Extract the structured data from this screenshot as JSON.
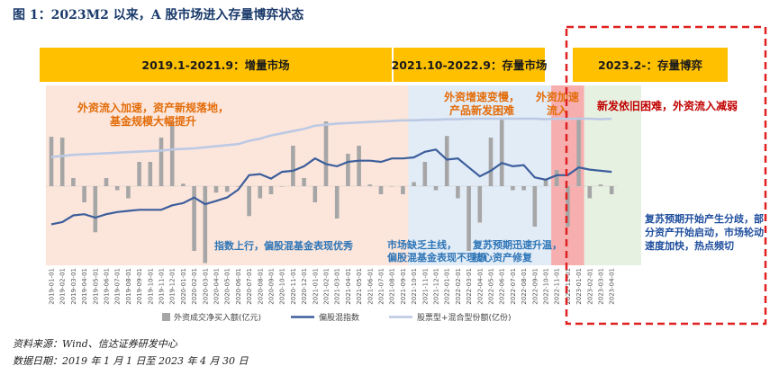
{
  "figure_title": "图 1：2023M2 以来，A 股市场进入存量博弈状态",
  "phases": [
    {
      "label": "2019.1-2021.9：增量市场"
    },
    {
      "label": "2021.10-2022.9：存量市场"
    },
    {
      "label": "2023.2-：存量博弈"
    }
  ],
  "annotations": [
    {
      "lines": [
        "外资流入加速，资产新规落地，",
        "基金规模大幅提升"
      ],
      "color": "#e36c09"
    },
    {
      "lines": [
        "外资增速变慢，",
        "产品新发困难"
      ],
      "color": "#e36c09"
    },
    {
      "lines": [
        "外资加速",
        "流入"
      ],
      "color": "#e36c09"
    },
    {
      "lines": [
        "新发依旧困难，外资流入减弱"
      ],
      "color": "#c00000"
    },
    {
      "lines": [
        "指数上行，偏股混基金表现优秀"
      ],
      "color": "#2e75b6"
    },
    {
      "lines": [
        "市场缺乏主线，",
        "偏股混基金表现不理想"
      ],
      "color": "#2e75b6"
    },
    {
      "lines": [
        "复苏预期迅速升温，",
        "核心资产修复"
      ],
      "color": "#2e75b6"
    },
    {
      "lines": [
        "复苏预期开始产生分歧，部",
        "分资产开始启动，市场轮动",
        "速度加快，热点频切"
      ],
      "color": "#1f4e9d"
    }
  ],
  "legend": [
    {
      "label": "外资成交净买入额(亿元)",
      "color": "#a6a6a6"
    },
    {
      "label": "偏股混指数",
      "color": "#3c5e9c"
    },
    {
      "label": "股票型+混合型份额(亿份)",
      "color": "#bcc9e4"
    }
  ],
  "footer": {
    "source": "资料来源：Wind、信达证券研发中心",
    "date": "数据日期：2019 年 1 月 1 日至 2023 年 4 月 30 日"
  },
  "chart_data": {
    "type": "bar+line",
    "x": [
      "2019-01-01",
      "2019-02-01",
      "2019-03-01",
      "2019-04-01",
      "2019-05-01",
      "2019-06-01",
      "2019-07-01",
      "2019-08-01",
      "2019-09-01",
      "2019-10-01",
      "2019-11-01",
      "2019-12-01",
      "2020-01-01",
      "2020-02-01",
      "2020-03-01",
      "2020-04-01",
      "2020-05-01",
      "2020-06-01",
      "2020-07-01",
      "2020-08-01",
      "2020-09-01",
      "2020-10-01",
      "2020-11-01",
      "2020-12-01",
      "2021-01-01",
      "2021-02-01",
      "2021-03-01",
      "2021-04-01",
      "2021-05-01",
      "2021-06-01",
      "2021-07-01",
      "2021-08-01",
      "2021-09-01",
      "2021-10-01",
      "2021-11-01",
      "2021-12-01",
      "2022-01-01",
      "2022-02-01",
      "2022-03-01",
      "2022-04-01",
      "2022-05-01",
      "2022-06-01",
      "2022-07-01",
      "2022-08-01",
      "2022-09-01",
      "2022-10-01",
      "2022-11-01",
      "2022-12-01",
      "2023-01-01",
      "2023-02-01",
      "2023-03-01",
      "2023-04-01"
    ],
    "series": [
      {
        "name": "外资成交净买入额(亿元)",
        "type": "bar",
        "values": [
          61,
          60,
          10,
          -20,
          -57,
          10,
          -5,
          -15,
          30,
          30,
          60,
          80,
          3,
          -80,
          -95,
          -8,
          -7,
          0,
          -37,
          -15,
          -10,
          0,
          50,
          10,
          -20,
          80,
          -40,
          40,
          50,
          2,
          -10,
          0,
          -10,
          5,
          30,
          -5,
          62,
          -15,
          -80,
          -45,
          60,
          82,
          -5,
          -5,
          -50,
          8,
          20,
          -50,
          85,
          -15,
          2,
          -10
        ]
      },
      {
        "name": "偏股混指数",
        "type": "line",
        "values": [
          7500,
          7700,
          8300,
          8400,
          8100,
          8400,
          8600,
          8700,
          8800,
          8800,
          8800,
          9200,
          9400,
          9900,
          9300,
          9600,
          9900,
          10600,
          11900,
          12000,
          11600,
          12200,
          12300,
          12700,
          13400,
          12900,
          12700,
          13100,
          13200,
          13200,
          13100,
          13400,
          13400,
          13500,
          14000,
          14200,
          13300,
          13400,
          12600,
          11800,
          12300,
          13000,
          12700,
          12800,
          11700,
          11500,
          11900,
          11900,
          12600,
          12400,
          12300,
          12200
        ]
      },
      {
        "name": "股票型+混合型份额(亿份)",
        "type": "line",
        "values": [
          11400,
          11500,
          11600,
          11650,
          11700,
          11750,
          11800,
          11850,
          11900,
          11950,
          12000,
          12100,
          12150,
          12200,
          12300,
          12400,
          12500,
          12600,
          12900,
          13100,
          13400,
          13600,
          13800,
          14000,
          14300,
          14400,
          14500,
          14550,
          14600,
          14650,
          14700,
          14750,
          14800,
          14800,
          14850,
          14850,
          14900,
          14900,
          14950,
          14950,
          14950,
          14950,
          14950,
          14950,
          14950,
          14900,
          14950,
          14950,
          14950,
          14950,
          14900,
          14950
        ]
      }
    ]
  }
}
